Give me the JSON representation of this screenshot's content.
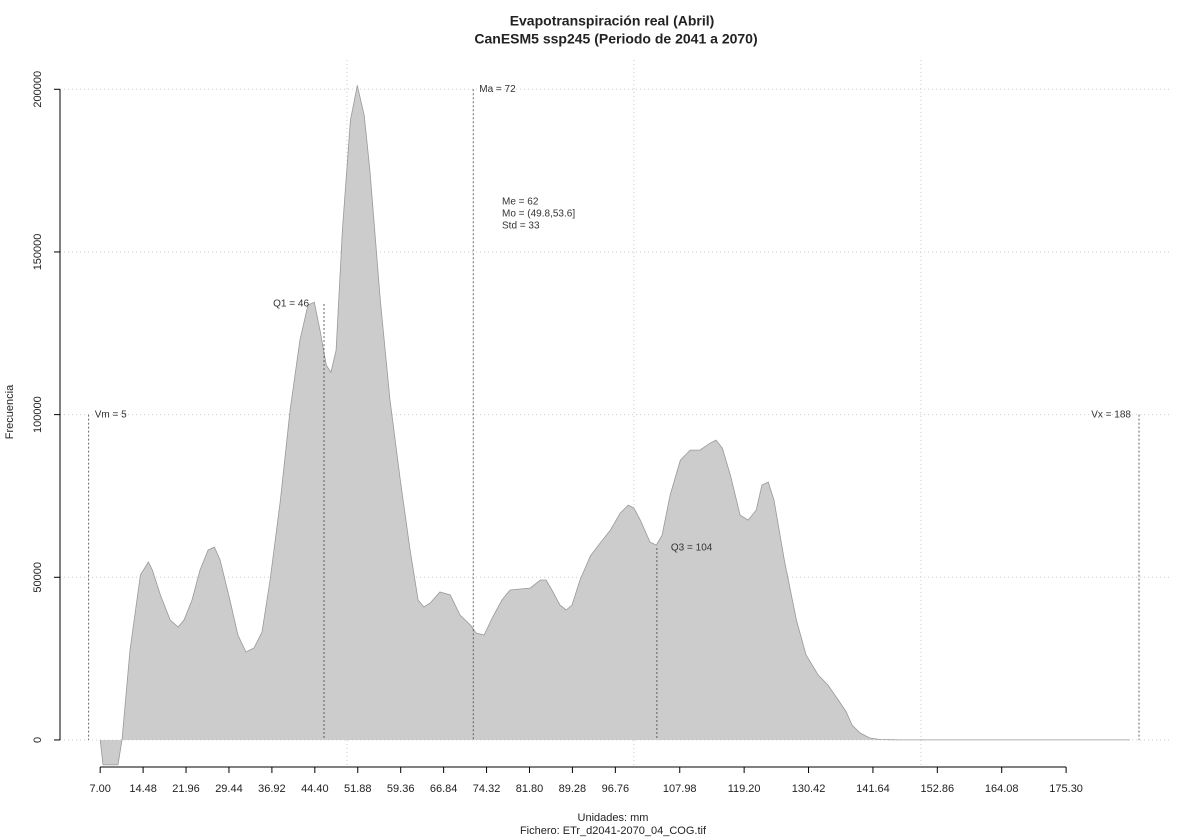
{
  "chart_data": {
    "type": "area",
    "title": "Evapotranspiración real (Abril)",
    "subtitle": "CanESM5 ssp245 (Periodo de 2041 a 2070)",
    "xlabel": "Unidades: mm",
    "caption": "Fichero: ETr_d2041-2070_04_COG.tif",
    "ylabel": "Frecuencia",
    "color": "#cccccc",
    "line_color": "#999999",
    "x": [
      7.0,
      7.5,
      10.1,
      10.8,
      12.2,
      14.0,
      15.4,
      16.1,
      17.5,
      19.2,
      20.6,
      21.6,
      23.0,
      24.4,
      25.8,
      26.9,
      27.9,
      29.6,
      31.0,
      32.4,
      33.8,
      35.2,
      36.6,
      38.4,
      40.1,
      41.8,
      43.2,
      44.3,
      45.3,
      46.4,
      47.2,
      48.1,
      49.2,
      50.6,
      51.8,
      53.0,
      54.0,
      55.8,
      57.5,
      59.3,
      61.0,
      62.4,
      63.4,
      64.5,
      66.2,
      68.0,
      69.7,
      71.5,
      72.5,
      73.9,
      75.3,
      77.0,
      78.4,
      80.2,
      81.9,
      83.7,
      84.7,
      85.7,
      87.1,
      88.2,
      89.2,
      90.6,
      92.4,
      94.1,
      95.9,
      97.6,
      99.0,
      100.0,
      101.1,
      102.8,
      103.9,
      104.9,
      106.3,
      108.1,
      109.8,
      111.5,
      113.3,
      114.3,
      115.4,
      116.8,
      118.5,
      119.9,
      121.3,
      122.3,
      123.4,
      124.4,
      126.2,
      128.3,
      130.0,
      132.1,
      133.8,
      135.6,
      137.0,
      138.0,
      139.4,
      141.1,
      142.9,
      146.4,
      186.4
    ],
    "values": [
      0,
      -7680,
      -7680,
      0,
      27650,
      50690,
      54690,
      52220,
      44540,
      36860,
      34710,
      36860,
      43010,
      52220,
      58370,
      59290,
      55300,
      43010,
      32260,
      27030,
      28260,
      33180,
      49150,
      73730,
      101380,
      122880,
      133630,
      134560,
      125950,
      115200,
      113050,
      119810,
      156670,
      190460,
      201220,
      192000,
      175100,
      135170,
      104450,
      79870,
      58370,
      43010,
      40860,
      42090,
      45470,
      44540,
      38400,
      35330,
      32870,
      32260,
      37480,
      43010,
      46080,
      46390,
      46690,
      49150,
      49150,
      46080,
      41470,
      39940,
      41470,
      49150,
      56520,
      60520,
      64510,
      69730,
      72190,
      71270,
      67580,
      60830,
      59900,
      62980,
      75260,
      86020,
      89090,
      89090,
      91240,
      92160,
      89700,
      81410,
      69120,
      67580,
      70660,
      78340,
      79260,
      73730,
      55300,
      36860,
      26110,
      19970,
      16900,
      12290,
      8600,
      4610,
      2150,
      610,
      150,
      0,
      0
    ],
    "xlim": [
      0,
      193.4
    ],
    "ylim": [
      -7700,
      209000
    ],
    "xticks": [
      {
        "value": 7,
        "label": "7.00"
      },
      14.48,
      21.96,
      29.44,
      36.92,
      {
        "value": 44.4,
        "label": "44.40"
      },
      51.88,
      59.36,
      66.84,
      74.32,
      {
        "value": 81.8,
        "label": "81.80"
      },
      89.28,
      96.76,
      107.98,
      {
        "value": 119.2,
        "label": "119.20"
      },
      130.42,
      141.64,
      152.86,
      164.08,
      {
        "value": 175.3,
        "label": "175.30"
      }
    ],
    "yticks": [
      0,
      50000,
      100000,
      150000,
      200000
    ],
    "xgrid": [
      50,
      100,
      150
    ],
    "grid": true,
    "annotations": [
      {
        "label": "Vm = 5",
        "x": 5,
        "y": 100000
      },
      {
        "label": "Q1 = 46",
        "x": 46,
        "y": 134000
      },
      {
        "label": "Ma = 72",
        "x": 72,
        "y": 200000
      },
      {
        "label": "Q3 = 104",
        "x": 104,
        "y": 59000
      },
      {
        "label": "Vx = 188",
        "x": 188,
        "y": 100000
      }
    ],
    "stats": [
      "Me = 62",
      "Mo = (49.8,53.6]",
      "Std = 33"
    ]
  }
}
